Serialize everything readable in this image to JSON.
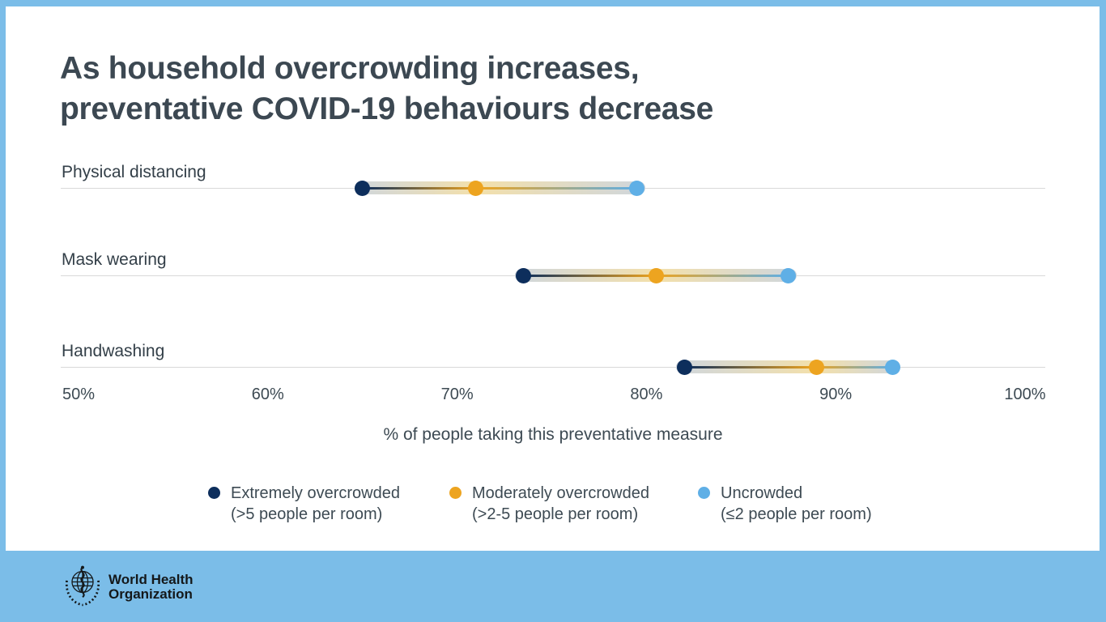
{
  "title": {
    "line1": "As household overcrowding increases,",
    "line2": "preventative COVID-19 behaviours decrease"
  },
  "chart_data": {
    "type": "dumbbell",
    "categories": [
      "Physical distancing",
      "Mask wearing",
      "Handwashing"
    ],
    "series": [
      {
        "name": "Extremely overcrowded (>5 people per room)",
        "color": "#0d2e5c",
        "values": [
          65,
          73.5,
          82
        ]
      },
      {
        "name": "Moderately overcrowded (>2-5 people per room)",
        "color": "#eda420",
        "values": [
          71,
          80.5,
          89
        ]
      },
      {
        "name": "Uncrowded (≤2 people per room)",
        "color": "#5fafe6",
        "values": [
          79.5,
          87.5,
          93
        ]
      }
    ],
    "xlabel": "% of people taking this preventative measure",
    "xlim": [
      50,
      100
    ],
    "xticks": [
      {
        "value": 50,
        "label": "50%"
      },
      {
        "value": 60,
        "label": "60%"
      },
      {
        "value": 70,
        "label": "70%"
      },
      {
        "value": 80,
        "label": "80%"
      },
      {
        "value": 90,
        "label": "90%"
      },
      {
        "value": 100,
        "label": "100%"
      }
    ],
    "grid": "one horizontal line per category row",
    "legend_position": "bottom"
  },
  "legend": {
    "items": [
      {
        "swatch": "#0d2e5c",
        "line1": "Extremely overcrowded",
        "line2": "(>5 people per room)"
      },
      {
        "swatch": "#eda420",
        "line1": "Moderately overcrowded",
        "line2": "(>2-5 people per room)"
      },
      {
        "swatch": "#5fafe6",
        "line1": "Uncrowded",
        "line2": "(≤2 people per room)"
      }
    ]
  },
  "footer": {
    "logo": "who-emblem-icon",
    "org_line1": "World Health",
    "org_line2": "Organization"
  },
  "colors": {
    "frame_blue": "#7bbde8",
    "card_white": "#ffffff",
    "title_text": "#3c4852",
    "body_text": "#3d4a53",
    "gridline": "#d9d9d9",
    "band_gray": "#cfd6dd",
    "band_yellow": "#f3e0ab",
    "logo_black": "#14181a"
  }
}
